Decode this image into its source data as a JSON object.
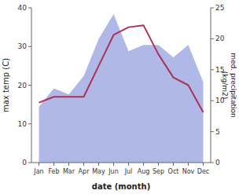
{
  "chart_data": {
    "type": "line",
    "categories": [
      "Jan",
      "Feb",
      "Mar",
      "Apr",
      "May",
      "Jun",
      "Jul",
      "Aug",
      "Sep",
      "Oct",
      "Nov",
      "Dec"
    ],
    "series": [
      {
        "type": "area",
        "color": "#b0b8e8",
        "axis": "y2",
        "values": [
          9.0,
          12.0,
          11.0,
          14.0,
          20.0,
          24.0,
          18.0,
          19.0,
          19.0,
          17.0,
          19.0,
          13.0
        ]
      },
      {
        "type": "line",
        "color": "#aa3355",
        "values": [
          15.5,
          17.0,
          17.0,
          17.0,
          25.0,
          33.0,
          35.0,
          35.5,
          28.0,
          22.0,
          20.0,
          13.0
        ]
      }
    ],
    "xlabel": "date (month)",
    "ylabel": "max temp (C)",
    "y2label": "med. precipitation\n(kg/m2)",
    "ylim": [
      0,
      40
    ],
    "yticks": [
      0,
      10,
      20,
      30,
      40
    ],
    "y2lim": [
      0,
      25
    ],
    "y2ticks": [
      0,
      5,
      10,
      15,
      20,
      25
    ],
    "grid": false
  }
}
